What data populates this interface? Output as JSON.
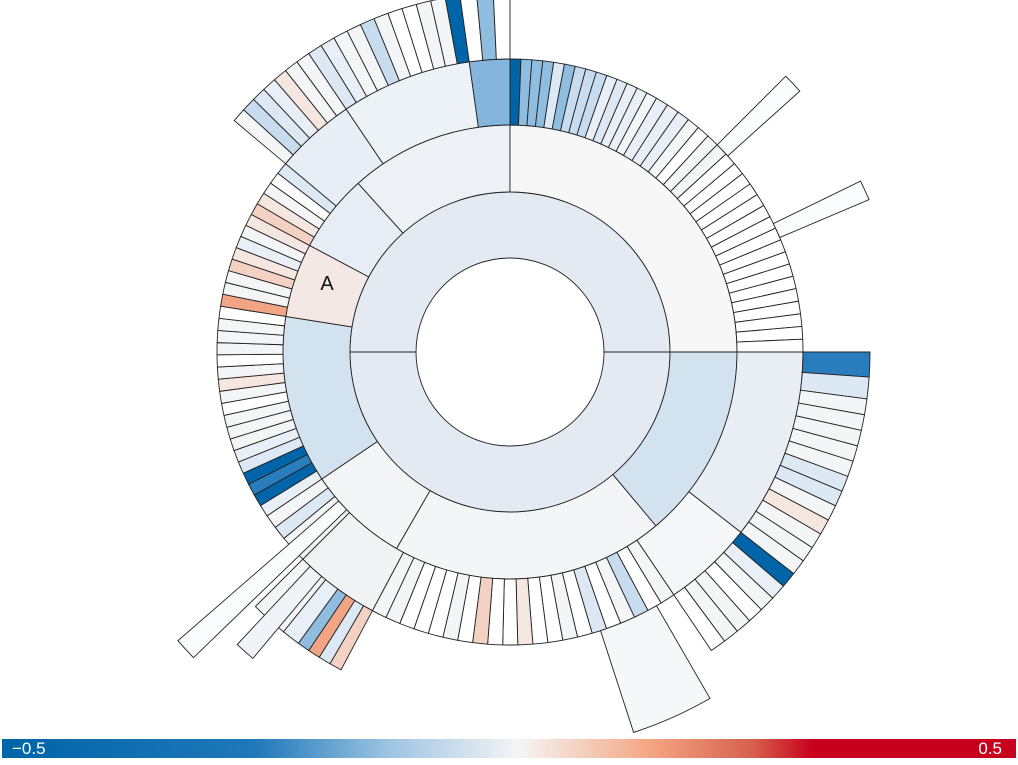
{
  "diagram": {
    "type": "sunburst",
    "label_a": "A"
  },
  "colorbar": {
    "min_label": "−0.5",
    "max_label": "0.5",
    "min": -0.5,
    "max": 0.5
  },
  "colors": {
    "stroke": "#222222",
    "negative_strong": "#0064a8",
    "negative_mid": "#8ebde0",
    "negative_light": "#dce8f3",
    "neutral": "#f5f5f5",
    "positive_light": "#f6e6e0",
    "positive_mid": "#f1a585",
    "positive_strong": "#c8001e"
  }
}
